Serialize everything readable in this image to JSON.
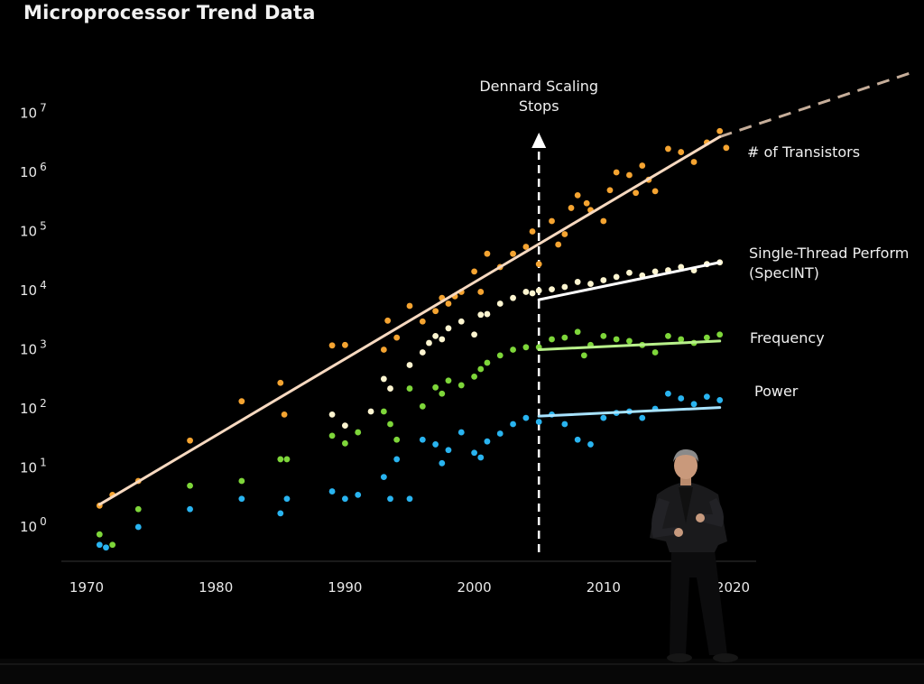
{
  "chart_data": {
    "type": "scatter",
    "title": "Microprocessor Trend Data",
    "x_ticks": [
      "1970",
      "1980",
      "1990",
      "2000",
      "2010",
      "2020"
    ],
    "xlim": [
      1970,
      2020
    ],
    "y_scale": "log",
    "y_ticks": [
      {
        "base": "10",
        "exp": "0",
        "value": 1
      },
      {
        "base": "10",
        "exp": "1",
        "value": 10
      },
      {
        "base": "10",
        "exp": "2",
        "value": 100
      },
      {
        "base": "10",
        "exp": "3",
        "value": 1000
      },
      {
        "base": "10",
        "exp": "4",
        "value": 10000
      },
      {
        "base": "10",
        "exp": "5",
        "value": 100000
      },
      {
        "base": "10",
        "exp": "6",
        "value": 1000000
      },
      {
        "base": "10",
        "exp": "7",
        "value": 10000000
      }
    ],
    "annotation": {
      "lines": [
        "Dennard Scaling",
        "Stops"
      ],
      "x": 2005
    },
    "series": [
      {
        "name": "# of Transistors",
        "color": "#f5a431",
        "points": [
          [
            1971,
            2.3
          ],
          [
            1972,
            3.5
          ],
          [
            1974,
            6
          ],
          [
            1978,
            29
          ],
          [
            1982,
            134
          ],
          [
            1985,
            275
          ],
          [
            1985.3,
            80
          ],
          [
            1989,
            1180
          ],
          [
            1990,
            1200
          ],
          [
            1993,
            1000
          ],
          [
            1993.3,
            3100
          ],
          [
            1994,
            1600
          ],
          [
            1995,
            5500
          ],
          [
            1996,
            3000
          ],
          [
            1997,
            4500
          ],
          [
            1997.5,
            7500
          ],
          [
            1998,
            6000
          ],
          [
            1998.5,
            8000
          ],
          [
            1999,
            9500
          ],
          [
            2000,
            21000
          ],
          [
            2000.5,
            9500
          ],
          [
            2001,
            42000
          ],
          [
            2002,
            25000
          ],
          [
            2003,
            42000
          ],
          [
            2004,
            55000
          ],
          [
            2004.5,
            100000
          ],
          [
            2005,
            28000
          ],
          [
            2006,
            150000
          ],
          [
            2006.5,
            60000
          ],
          [
            2007,
            90000
          ],
          [
            2007.5,
            250000
          ],
          [
            2008,
            410000
          ],
          [
            2008.7,
            300000
          ],
          [
            2009,
            230000
          ],
          [
            2010,
            150000
          ],
          [
            2010.5,
            500000
          ],
          [
            2011,
            1000000
          ],
          [
            2012,
            900000
          ],
          [
            2012.5,
            450000
          ],
          [
            2013,
            1300000
          ],
          [
            2013.5,
            750000
          ],
          [
            2014,
            480000
          ],
          [
            2015,
            2500000
          ],
          [
            2016,
            2200000
          ],
          [
            2017,
            1500000
          ],
          [
            2018,
            3200000
          ],
          [
            2019,
            5000000
          ],
          [
            2019.5,
            2600000
          ]
        ]
      },
      {
        "name": "Single-Thread Performance (SpecINT)",
        "color": "#fdf5d0",
        "points": [
          [
            1989,
            80
          ],
          [
            1990,
            52
          ],
          [
            1992,
            90
          ],
          [
            1993,
            320
          ],
          [
            1993.5,
            220
          ],
          [
            1995,
            550
          ],
          [
            1996,
            900
          ],
          [
            1996.5,
            1300
          ],
          [
            1997,
            1700
          ],
          [
            1997.5,
            1500
          ],
          [
            1998,
            2300
          ],
          [
            1999,
            3000
          ],
          [
            2000,
            1800
          ],
          [
            2000.5,
            3900
          ],
          [
            2001,
            4000
          ],
          [
            2002,
            6000
          ],
          [
            2003,
            7500
          ],
          [
            2004,
            9500
          ],
          [
            2004.5,
            9000
          ],
          [
            2005,
            10000
          ],
          [
            2006,
            10500
          ],
          [
            2007,
            11500
          ],
          [
            2008,
            14000
          ],
          [
            2009,
            13000
          ],
          [
            2010,
            15000
          ],
          [
            2011,
            17000
          ],
          [
            2012,
            20000
          ],
          [
            2013,
            18000
          ],
          [
            2014,
            21000
          ],
          [
            2015,
            22000
          ],
          [
            2016,
            25000
          ],
          [
            2017,
            22000
          ],
          [
            2018,
            28000
          ],
          [
            2019,
            30000
          ]
        ]
      },
      {
        "name": "Frequency",
        "color": "#7ed63a",
        "points": [
          [
            1971,
            0.75
          ],
          [
            1972,
            0.5
          ],
          [
            1974,
            2
          ],
          [
            1978,
            5
          ],
          [
            1982,
            6
          ],
          [
            1985,
            14
          ],
          [
            1985.5,
            14
          ],
          [
            1989,
            35
          ],
          [
            1990,
            26
          ],
          [
            1991,
            40
          ],
          [
            1993,
            90
          ],
          [
            1993.5,
            55
          ],
          [
            1994,
            30
          ],
          [
            1995,
            220
          ],
          [
            1996,
            110
          ],
          [
            1997,
            230
          ],
          [
            1997.5,
            180
          ],
          [
            1998,
            300
          ],
          [
            1999,
            250
          ],
          [
            2000,
            350
          ],
          [
            2000.5,
            470
          ],
          [
            2001,
            600
          ],
          [
            2002,
            800
          ],
          [
            2003,
            1000
          ],
          [
            2004,
            1100
          ],
          [
            2005,
            1100
          ],
          [
            2006,
            1500
          ],
          [
            2007,
            1600
          ],
          [
            2008,
            2000
          ],
          [
            2008.5,
            800
          ],
          [
            2009,
            1200
          ],
          [
            2010,
            1700
          ],
          [
            2011,
            1500
          ],
          [
            2012,
            1400
          ],
          [
            2013,
            1200
          ],
          [
            2014,
            900
          ],
          [
            2015,
            1700
          ],
          [
            2016,
            1500
          ],
          [
            2017,
            1300
          ],
          [
            2018,
            1600
          ],
          [
            2019,
            1800
          ]
        ]
      },
      {
        "name": "Power",
        "color": "#29b4f0",
        "points": [
          [
            1971,
            0.5
          ],
          [
            1971.5,
            0.45
          ],
          [
            1974,
            1
          ],
          [
            1978,
            2
          ],
          [
            1982,
            3
          ],
          [
            1985,
            1.7
          ],
          [
            1985.5,
            3
          ],
          [
            1989,
            4
          ],
          [
            1990,
            3
          ],
          [
            1991,
            3.5
          ],
          [
            1993,
            7
          ],
          [
            1993.5,
            3
          ],
          [
            1994,
            14
          ],
          [
            1995,
            3
          ],
          [
            1996,
            30
          ],
          [
            1997,
            25
          ],
          [
            1997.5,
            12
          ],
          [
            1998,
            20
          ],
          [
            1999,
            40
          ],
          [
            2000,
            18
          ],
          [
            2000.5,
            15
          ],
          [
            2001,
            28
          ],
          [
            2002,
            38
          ],
          [
            2003,
            55
          ],
          [
            2004,
            70
          ],
          [
            2005,
            60
          ],
          [
            2006,
            80
          ],
          [
            2007,
            55
          ],
          [
            2008,
            30
          ],
          [
            2009,
            25
          ],
          [
            2010,
            70
          ],
          [
            2011,
            85
          ],
          [
            2012,
            90
          ],
          [
            2013,
            70
          ],
          [
            2014,
            100
          ],
          [
            2015,
            180
          ],
          [
            2016,
            150
          ],
          [
            2017,
            120
          ],
          [
            2018,
            160
          ],
          [
            2019,
            140
          ]
        ]
      }
    ],
    "trend_lines": [
      {
        "series": "# of Transistors",
        "color": "#f7d9c0",
        "from": [
          1971,
          2.4
        ],
        "to": [
          2019,
          4000000
        ],
        "dashed_to": [
          2034,
          50000000
        ]
      },
      {
        "series": "Single-Thread Performance (SpecINT)",
        "color": "#ffffff",
        "from": [
          2005,
          7000
        ],
        "to": [
          2019,
          30000
        ]
      },
      {
        "series": "Frequency",
        "color": "#b8f08a",
        "from": [
          2005,
          1000
        ],
        "to": [
          2019,
          1400
        ]
      },
      {
        "series": "Power",
        "color": "#a8e3ff",
        "from": [
          2005,
          75
        ],
        "to": [
          2019,
          105
        ]
      }
    ],
    "legend_labels": [
      {
        "lines": [
          "# of Transistors"
        ]
      },
      {
        "lines": [
          "Single-Thread Perform",
          "(SpecINT)"
        ]
      },
      {
        "lines": [
          "Frequency"
        ]
      },
      {
        "lines": [
          "Power"
        ]
      }
    ]
  }
}
